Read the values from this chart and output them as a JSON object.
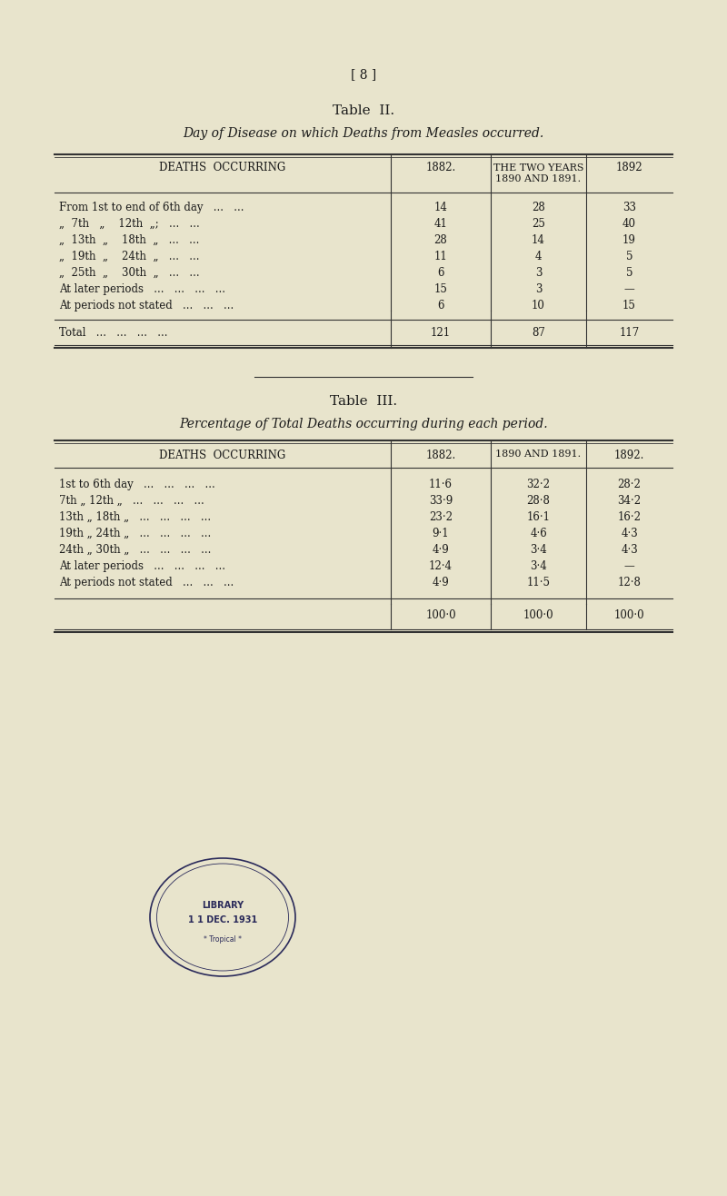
{
  "page_number": "[ 8 ]",
  "bg_color": "#e8e4cc",
  "table2": {
    "title": "Table  II.",
    "subtitle": "Day of Disease on which Deaths from Measles occurred.",
    "col_headers": [
      "DEATHS  OCCURRING",
      "1882.",
      "THE TWO YEARS\n1890 AND 1891.",
      "1892"
    ],
    "rows": [
      [
        "From 1st to end of 6th day   ...   ...",
        "14",
        "28",
        "33"
      ],
      [
        "„  7th   „    12th  „;   ...   ...",
        "41",
        "25",
        "40"
      ],
      [
        "„  13th  „    18th  „   ...   ...",
        "28",
        "14",
        "19"
      ],
      [
        "„  19th  „    24th  „   ...   ...",
        "11",
        "4",
        "5"
      ],
      [
        "„  25th  „    30th  „   ...   ...",
        "6",
        "3",
        "5"
      ],
      [
        "At later periods   ...   ...   ...   ...",
        "15",
        "3",
        "—"
      ],
      [
        "At periods not stated   ...   ...   ...",
        "6",
        "10",
        "15"
      ]
    ],
    "total_row": [
      "Total   ...   ...   ...   ...",
      "121",
      "87",
      "117"
    ]
  },
  "table3": {
    "title": "Table  III.",
    "subtitle": "Percentage of Total Deaths occurring during each period.",
    "col_headers": [
      "DEATHS  OCCURRING",
      "1882.",
      "1890 AND 1891.",
      "1892."
    ],
    "rows": [
      [
        "1st to 6th day   ...   ...   ...   ...",
        "11·6",
        "32·2",
        "28·2"
      ],
      [
        "7th „ 12th „   ...   ...   ...   ...",
        "33·9",
        "28·8",
        "34·2"
      ],
      [
        "13th „ 18th „   ...   ...   ...   ...",
        "23·2",
        "16·1",
        "16·2"
      ],
      [
        "19th „ 24th „   ...   ...   ...   ...",
        "9·1",
        "4·6",
        "4·3"
      ],
      [
        "24th „ 30th „   ...   ...   ...   ...",
        "4·9",
        "3·4",
        "4·3"
      ],
      [
        "At later periods   ...   ...   ...   ...",
        "12·4",
        "3·4",
        "—"
      ],
      [
        "At periods not stated   ...   ...   ...",
        "4·9",
        "11·5",
        "12·8"
      ]
    ],
    "total_row": [
      "",
      "100·0",
      "100·0",
      "100·0"
    ]
  }
}
